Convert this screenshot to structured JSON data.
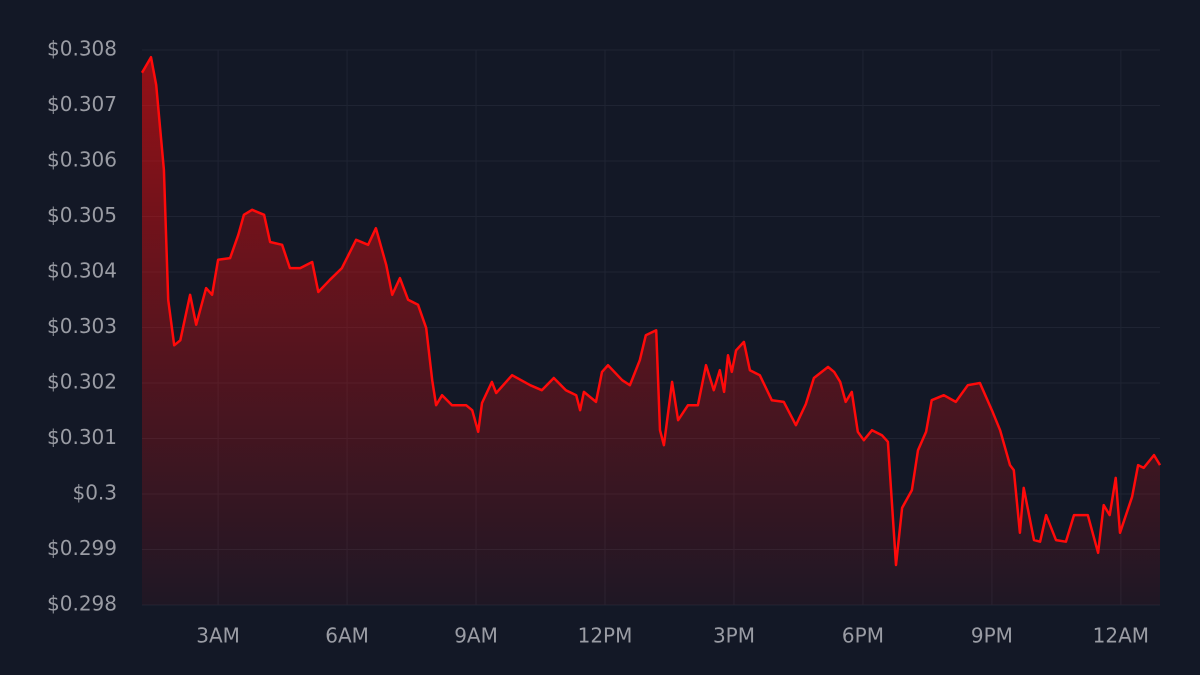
{
  "chart_data": {
    "type": "area",
    "color": "#ff0a0a",
    "grid": true,
    "xlim": [
      1.23,
      24.91
    ],
    "ylim": [
      0.298,
      0.308
    ],
    "xticks": [
      {
        "value": 3,
        "label": "3AM"
      },
      {
        "value": 6,
        "label": "6AM"
      },
      {
        "value": 9,
        "label": "9AM"
      },
      {
        "value": 12,
        "label": "12PM"
      },
      {
        "value": 15,
        "label": "3PM"
      },
      {
        "value": 18,
        "label": "6PM"
      },
      {
        "value": 21,
        "label": "9PM"
      },
      {
        "value": 24,
        "label": "12AM"
      }
    ],
    "yticks": [
      {
        "value": 0.298,
        "label": "$0.298"
      },
      {
        "value": 0.299,
        "label": "$0.299"
      },
      {
        "value": 0.3,
        "label": "$0.3"
      },
      {
        "value": 0.301,
        "label": "$0.301"
      },
      {
        "value": 0.302,
        "label": "$0.302"
      },
      {
        "value": 0.303,
        "label": "$0.303"
      },
      {
        "value": 0.304,
        "label": "$0.304"
      },
      {
        "value": 0.305,
        "label": "$0.305"
      },
      {
        "value": 0.306,
        "label": "$0.306"
      },
      {
        "value": 0.307,
        "label": "$0.307"
      },
      {
        "value": 0.308,
        "label": "$0.308"
      }
    ],
    "x": [
      1.23,
      1.44,
      1.56,
      1.74,
      1.84,
      1.98,
      2.12,
      2.35,
      2.49,
      2.72,
      2.86,
      3.0,
      3.28,
      3.47,
      3.6,
      3.79,
      4.07,
      4.21,
      4.49,
      4.67,
      4.91,
      5.19,
      5.33,
      5.6,
      5.88,
      6.21,
      6.49,
      6.67,
      6.91,
      7.05,
      7.23,
      7.42,
      7.65,
      7.84,
      7.98,
      8.07,
      8.21,
      8.44,
      8.77,
      8.91,
      9.05,
      9.14,
      9.37,
      9.47,
      9.84,
      10.26,
      10.53,
      10.81,
      11.09,
      11.33,
      11.42,
      11.51,
      11.79,
      11.93,
      12.07,
      12.4,
      12.58,
      12.81,
      12.95,
      13.19,
      13.28,
      13.37,
      13.56,
      13.7,
      13.93,
      14.16,
      14.35,
      14.53,
      14.67,
      14.77,
      14.86,
      14.95,
      15.05,
      15.23,
      15.37,
      15.6,
      15.88,
      16.16,
      16.44,
      16.67,
      16.86,
      17.19,
      17.33,
      17.47,
      17.6,
      17.74,
      17.88,
      18.02,
      18.21,
      18.44,
      18.58,
      18.77,
      18.91,
      19.14,
      19.28,
      19.47,
      19.6,
      19.88,
      20.16,
      20.44,
      20.72,
      21.0,
      21.19,
      21.42,
      21.51,
      21.65,
      21.74,
      21.98,
      22.12,
      22.26,
      22.49,
      22.72,
      22.91,
      23.23,
      23.47,
      23.6,
      23.74,
      23.88,
      23.98,
      24.26,
      24.4,
      24.53,
      24.77,
      24.91
    ],
    "values": [
      0.30759,
      0.30787,
      0.30737,
      0.30584,
      0.3035,
      0.30268,
      0.30277,
      0.30359,
      0.30305,
      0.30371,
      0.30359,
      0.30422,
      0.30425,
      0.30467,
      0.30503,
      0.30512,
      0.30503,
      0.30454,
      0.30449,
      0.30407,
      0.30407,
      0.30418,
      0.30364,
      0.30386,
      0.30407,
      0.30458,
      0.30449,
      0.30479,
      0.30413,
      0.30359,
      0.30389,
      0.3035,
      0.30341,
      0.30299,
      0.30205,
      0.3016,
      0.30178,
      0.3016,
      0.3016,
      0.30151,
      0.30112,
      0.30164,
      0.30202,
      0.30182,
      0.30214,
      0.30196,
      0.30187,
      0.30209,
      0.30187,
      0.30178,
      0.30151,
      0.30184,
      0.30166,
      0.3022,
      0.30232,
      0.30205,
      0.30196,
      0.30241,
      0.30286,
      0.30295,
      0.30115,
      0.30088,
      0.30202,
      0.30133,
      0.3016,
      0.3016,
      0.30232,
      0.30187,
      0.30223,
      0.30184,
      0.3025,
      0.3022,
      0.30259,
      0.30274,
      0.30223,
      0.30214,
      0.30169,
      0.30166,
      0.30124,
      0.30162,
      0.30209,
      0.30229,
      0.3022,
      0.30202,
      0.30166,
      0.30184,
      0.30112,
      0.30097,
      0.30115,
      0.30106,
      0.30094,
      0.29872,
      0.29975,
      0.30007,
      0.30079,
      0.30112,
      0.30169,
      0.30178,
      0.30166,
      0.30196,
      0.302,
      0.30151,
      0.30115,
      0.30052,
      0.30043,
      0.2993,
      0.30011,
      0.29917,
      0.29914,
      0.29962,
      0.29917,
      0.29914,
      0.29962,
      0.29962,
      0.29894,
      0.2998,
      0.29962,
      0.30029,
      0.2993,
      0.29995,
      0.30052,
      0.30047,
      0.3007,
      0.30052
    ]
  }
}
